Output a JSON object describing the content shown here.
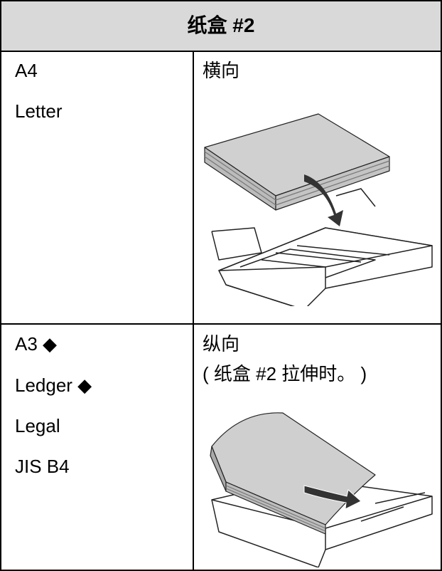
{
  "header": {
    "title": "纸盒 #2"
  },
  "table": {
    "rows": [
      {
        "sizes": [
          "A4",
          "Letter"
        ],
        "orientation": "横向"
      },
      {
        "sizes": [
          "A3 ◆",
          "Ledger ◆",
          "Legal",
          "JIS B4"
        ],
        "orientation": "纵向",
        "note": "( 纸盒 #2 拉伸时。 )"
      }
    ]
  }
}
